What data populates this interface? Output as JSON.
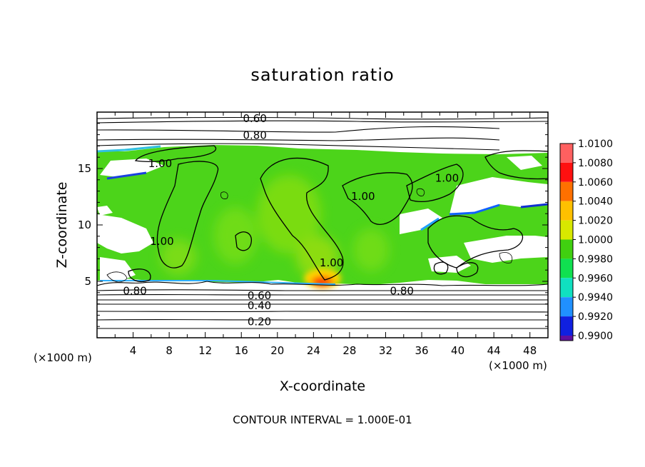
{
  "chart_data": {
    "type": "heatmap",
    "title": "saturation ratio",
    "xlabel": "X-coordinate",
    "ylabel": "Z-coordinate",
    "x_unit_left": "(×1000 m)",
    "x_unit_right": "(×1000 m)",
    "xlim": [
      0,
      50
    ],
    "ylim": [
      0,
      20
    ],
    "x_ticks": [
      4,
      8,
      12,
      16,
      20,
      24,
      28,
      32,
      36,
      40,
      44,
      48
    ],
    "y_ticks": [
      5,
      10,
      15
    ],
    "contour_note": "CONTOUR INTERVAL = 1.000E-01",
    "colorbar": {
      "range": [
        0.99,
        1.01
      ],
      "labels": [
        "1.0100",
        "1.0080",
        "1.0060",
        "1.0040",
        "1.0020",
        "1.0000",
        "0.9980",
        "0.9960",
        "0.9940",
        "0.9920",
        "0.9900"
      ],
      "colors": [
        "#ff6060",
        "#ff1010",
        "#ff7000",
        "#ffc000",
        "#d8e800",
        "#40d010",
        "#10e050",
        "#10e0c0",
        "#2090ff",
        "#1020e0",
        "#6010a0"
      ]
    },
    "contour_labels": [
      {
        "text": "0.60",
        "x": 17.5,
        "y": 19.5
      },
      {
        "text": "0.80",
        "x": 17.5,
        "y": 18.0
      },
      {
        "text": "1.00",
        "x": 7.0,
        "y": 15.5
      },
      {
        "text": "1.00",
        "x": 29.5,
        "y": 12.6
      },
      {
        "text": "1.00",
        "x": 38.8,
        "y": 14.2
      },
      {
        "text": "1.00",
        "x": 7.2,
        "y": 8.6
      },
      {
        "text": "1.00",
        "x": 26.0,
        "y": 6.7
      },
      {
        "text": "0.80",
        "x": 4.2,
        "y": 4.2
      },
      {
        "text": "0.80",
        "x": 33.8,
        "y": 4.2
      },
      {
        "text": "0.60",
        "x": 18.0,
        "y": 3.8
      },
      {
        "text": "0.40",
        "x": 18.0,
        "y": 2.9
      },
      {
        "text": "0.20",
        "x": 18.0,
        "y": 1.5
      }
    ]
  }
}
